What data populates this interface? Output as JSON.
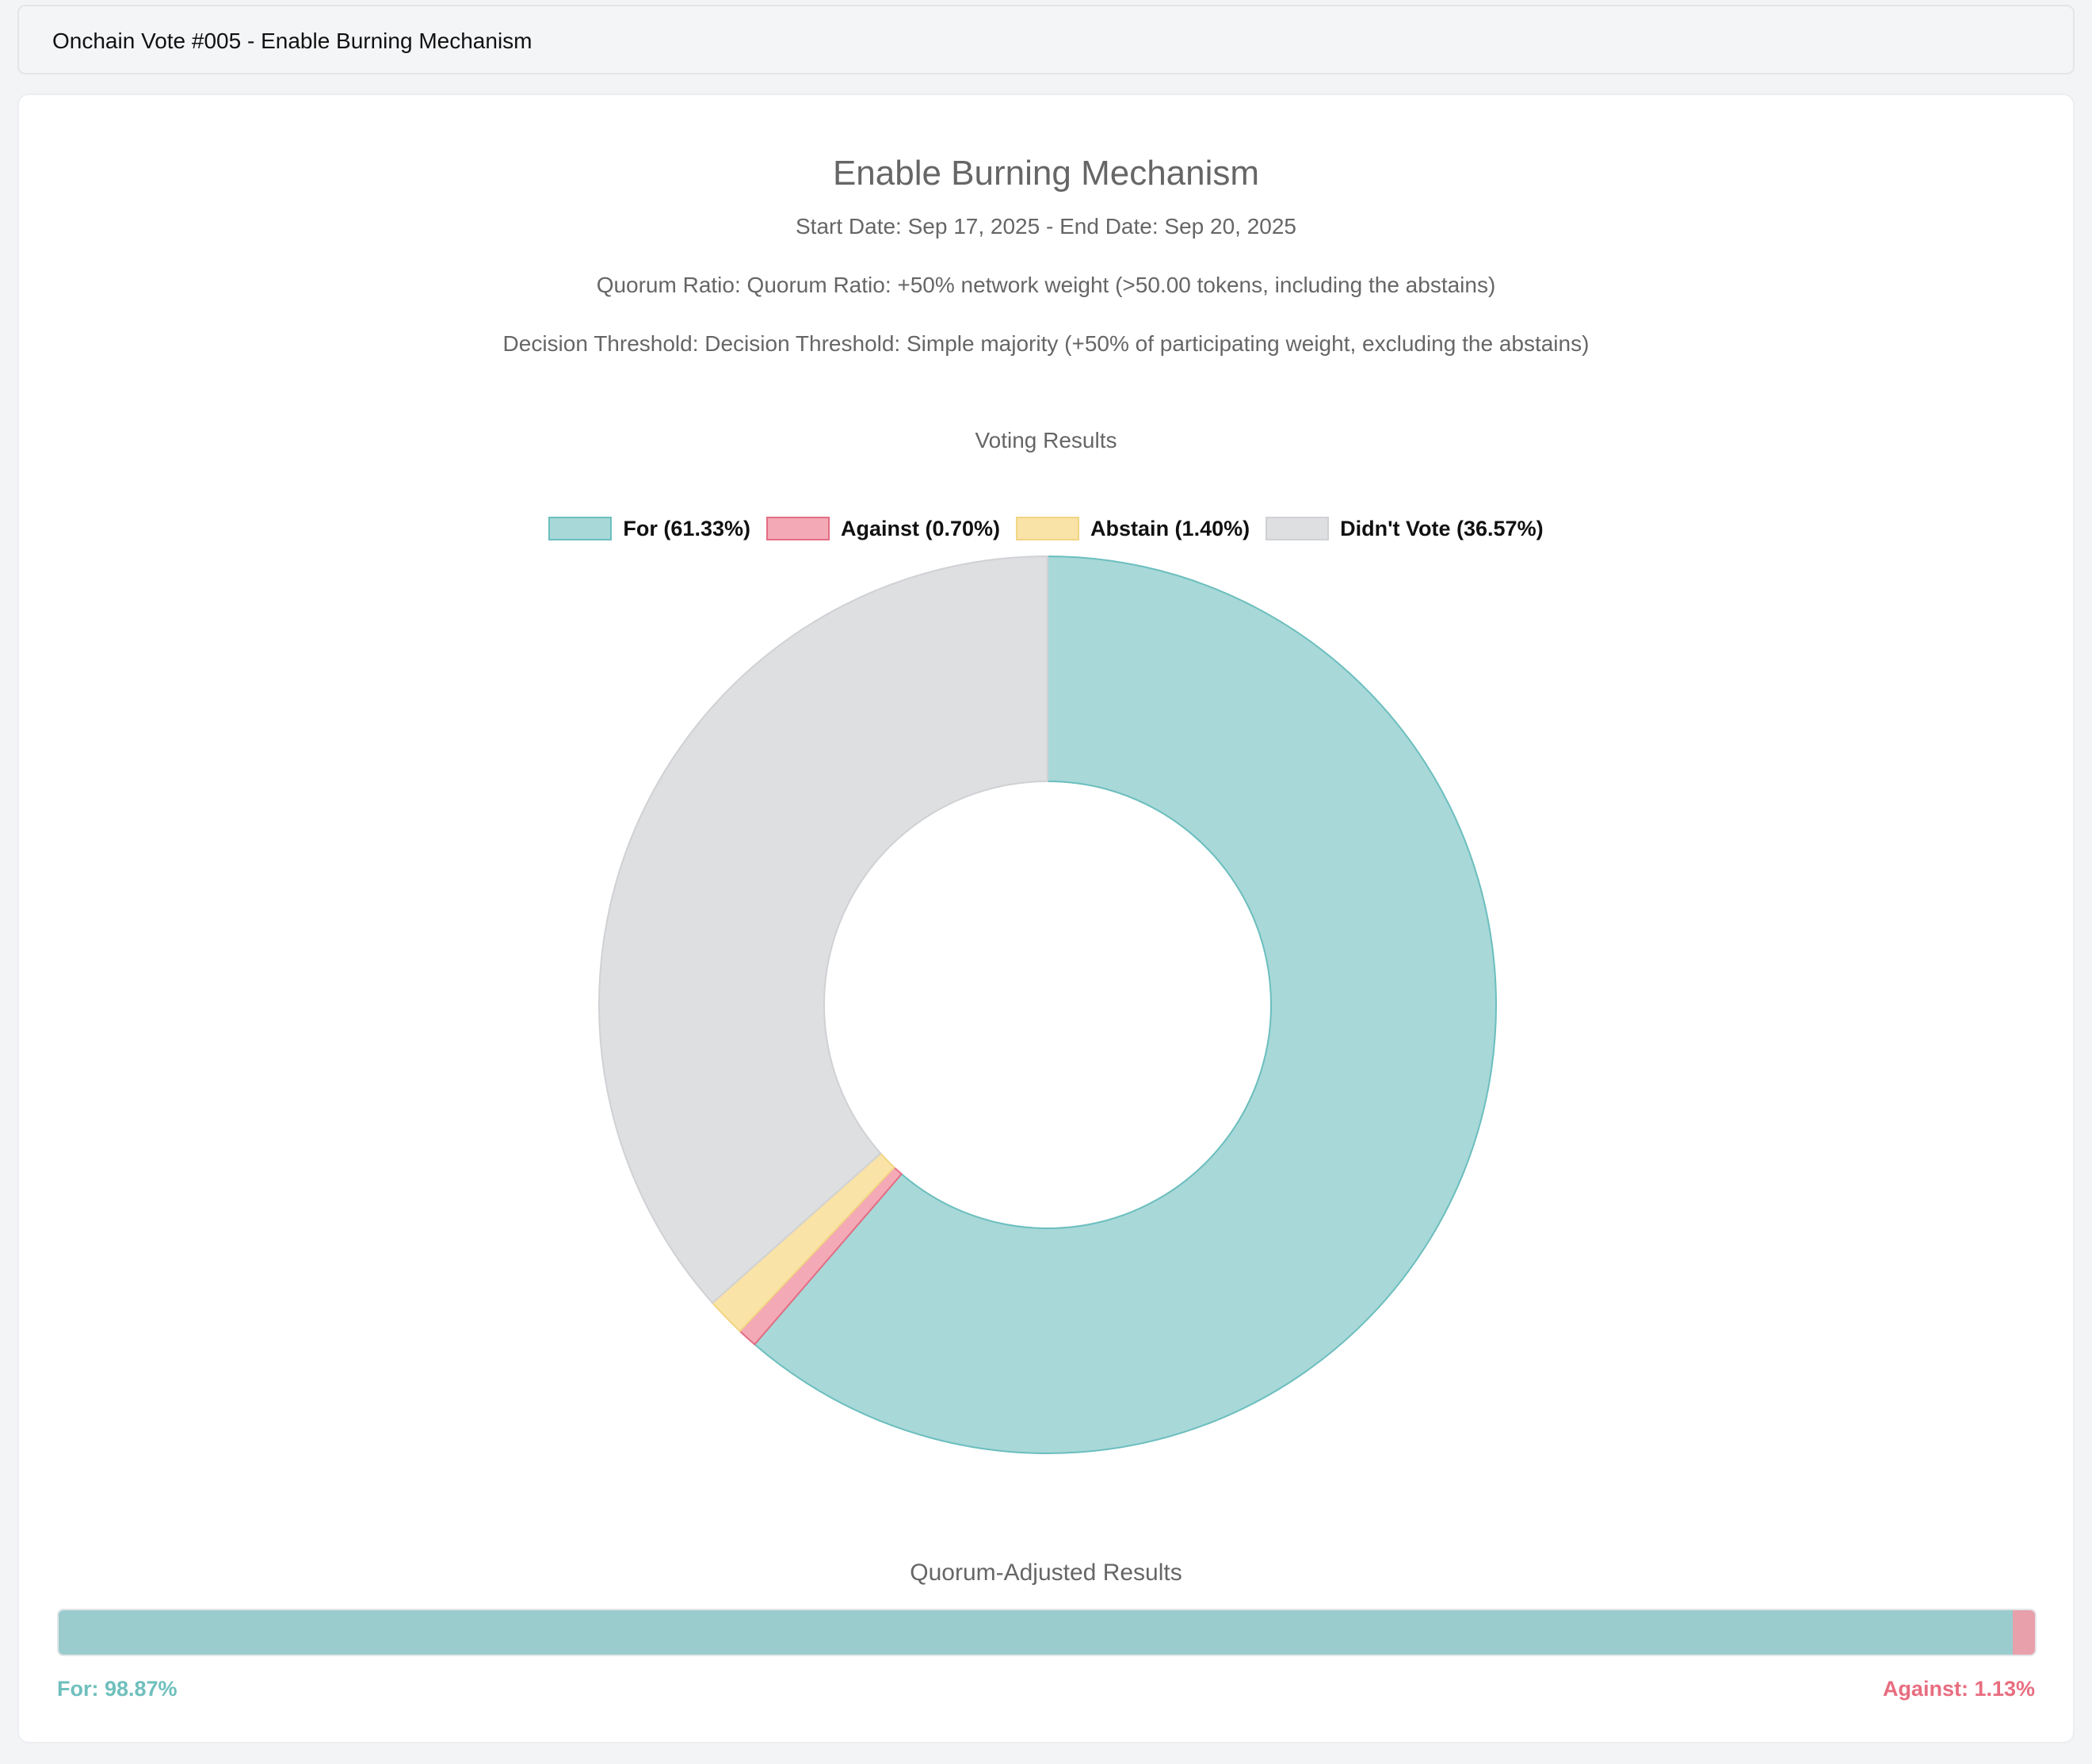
{
  "header": {
    "title": "Onchain Vote #005 - Enable Burning Mechanism"
  },
  "proposal": {
    "title": "Enable Burning Mechanism",
    "dates": "Start Date: Sep 17, 2025 - End Date: Sep 20, 2025",
    "quorum_ratio": "Quorum Ratio: Quorum Ratio: +50% network weight (>50.00 tokens, including the abstains)",
    "decision_threshold": "Decision Threshold: Decision Threshold: Simple majority (+50% of participating weight, excluding the abstains)"
  },
  "chart_data": [
    {
      "type": "pie",
      "title": "Voting Results",
      "legend_position": "top",
      "categories": [
        "For",
        "Against",
        "Abstain",
        "Didn't Vote"
      ],
      "values": [
        61.33,
        0.7,
        1.4,
        36.57
      ],
      "legend_labels": [
        "For (61.33%)",
        "Against (0.70%)",
        "Abstain (1.40%)",
        "Didn't Vote (36.57%)"
      ],
      "colors": [
        "#a8d8d8",
        "#f4a9b6",
        "#f9e3a6",
        "#dedfe1"
      ],
      "stroke_colors": [
        "#6cbebe",
        "#e46d84",
        "#f2d584",
        "#d0d1d4"
      ]
    },
    {
      "type": "bar",
      "title": "Quorum-Adjusted Results",
      "categories": [
        "For",
        "Against"
      ],
      "values": [
        98.87,
        1.13
      ],
      "labels": [
        "For: 98.87%",
        "Against: 1.13%"
      ],
      "colors": [
        "#9bcccd",
        "#e8a0ab"
      ]
    }
  ]
}
